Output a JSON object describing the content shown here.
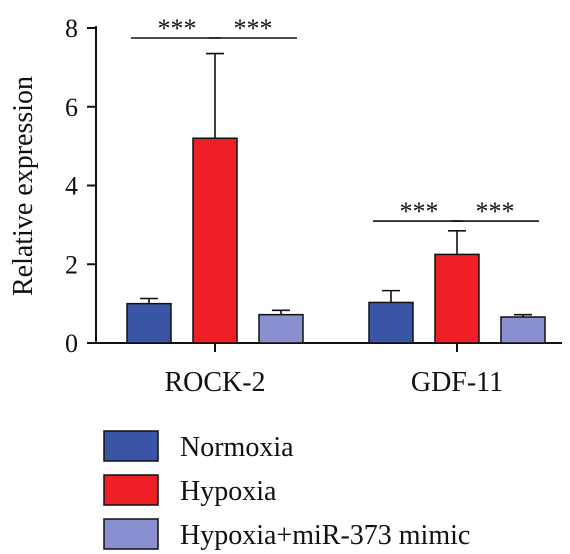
{
  "chart_data": {
    "type": "bar",
    "ylabel": "Relative expression",
    "ylim": [
      0,
      8
    ],
    "yticks": [
      "0",
      "2",
      "4",
      "6",
      "8"
    ],
    "categories": [
      "ROCK-2",
      "GDF-11"
    ],
    "series": [
      {
        "name": "Normoxia",
        "color": "#3a55a6",
        "values": [
          1.0,
          1.03
        ],
        "errors": [
          0.13,
          0.3
        ]
      },
      {
        "name": "Hypoxia",
        "color": "#ee1f25",
        "values": [
          5.2,
          2.25
        ],
        "errors": [
          2.15,
          0.6
        ]
      },
      {
        "name": "Hypoxia+miR-373 mimic",
        "color": "#8a8fcf",
        "values": [
          0.72,
          0.66
        ],
        "errors": [
          0.11,
          0.06
        ]
      }
    ],
    "annotations": [
      {
        "category": 0,
        "from": 0,
        "to": 1,
        "text": "***"
      },
      {
        "category": 0,
        "from": 1,
        "to": 2,
        "text": "***"
      },
      {
        "category": 1,
        "from": 0,
        "to": 1,
        "text": "***"
      },
      {
        "category": 1,
        "from": 1,
        "to": 2,
        "text": "***"
      }
    ],
    "annotation_levels": [
      8.0,
      8.0,
      3.35,
      3.35
    ],
    "legend_position": "bottom"
  }
}
